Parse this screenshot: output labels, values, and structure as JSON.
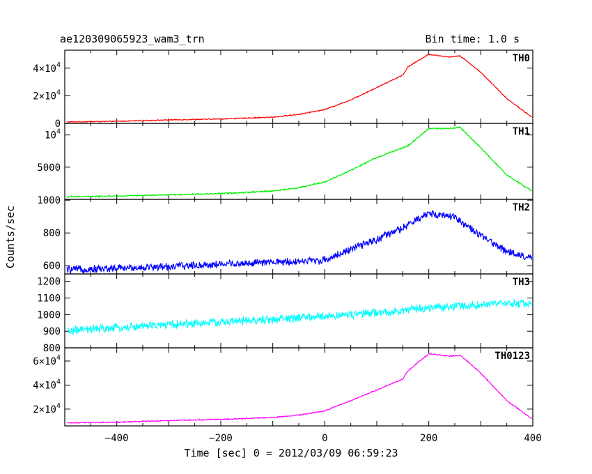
{
  "chart_data": {
    "type": "line",
    "title": "ae120309065923_wam3_trn",
    "subtitle": "Bin time: 1.0 s",
    "xlabel": "Time [sec] 0 = 2012/03/09 06:59:23",
    "ylabel": "Counts/sec",
    "xlim": [
      -500,
      400
    ],
    "x_ticks": [
      "−400",
      "−200",
      "0",
      "200",
      "400"
    ],
    "grid": false,
    "panels": [
      {
        "name": "TH0",
        "color": "#ff0000",
        "ylim": [
          0,
          53000
        ],
        "tick_values": [
          0,
          20000,
          40000
        ],
        "tick_labels": [
          {
            "mantissa": "0",
            "exp": ""
          },
          {
            "mantissa": "2×10",
            "exp": "4"
          },
          {
            "mantissa": "4×10",
            "exp": "4"
          }
        ],
        "x": [
          -500,
          -400,
          -300,
          -200,
          -100,
          -50,
          0,
          50,
          100,
          150,
          160,
          200,
          240,
          260,
          300,
          350,
          400
        ],
        "values": [
          1000,
          1500,
          2500,
          3200,
          4500,
          6500,
          10000,
          17000,
          26000,
          35000,
          41000,
          50000,
          48000,
          49000,
          37000,
          18000,
          4000
        ],
        "noise": 0.006
      },
      {
        "name": "TH1",
        "color": "#00ee00",
        "ylim": [
          0,
          11800
        ],
        "tick_values": [
          5000,
          10000
        ],
        "tick_labels": [
          {
            "mantissa": "5000",
            "exp": ""
          },
          {
            "mantissa": "10",
            "exp": "4"
          }
        ],
        "x": [
          -500,
          -400,
          -300,
          -200,
          -100,
          -50,
          0,
          50,
          100,
          150,
          160,
          200,
          240,
          260,
          300,
          350,
          400
        ],
        "values": [
          400,
          500,
          700,
          900,
          1300,
          1800,
          2700,
          4500,
          6500,
          8000,
          8300,
          11000,
          11000,
          11200,
          8000,
          3800,
          1200
        ],
        "noise": 0.008
      },
      {
        "name": "TH2",
        "color": "#0000ff",
        "ylim": [
          550,
          1005
        ],
        "tick_values": [
          600,
          800,
          1000
        ],
        "tick_labels": [
          {
            "mantissa": "600",
            "exp": ""
          },
          {
            "mantissa": "800",
            "exp": ""
          },
          {
            "mantissa": "1000",
            "exp": ""
          }
        ],
        "x": [
          -500,
          -400,
          -300,
          -200,
          -100,
          0,
          50,
          100,
          150,
          200,
          250,
          300,
          350,
          400
        ],
        "values": [
          575,
          585,
          595,
          610,
          620,
          635,
          700,
          760,
          830,
          920,
          900,
          780,
          690,
          640
        ],
        "noise": 0.045
      },
      {
        "name": "TH3",
        "color": "#00ffff",
        "ylim": [
          800,
          1245
        ],
        "tick_values": [
          800,
          900,
          1000,
          1100,
          1200
        ],
        "tick_labels": [
          {
            "mantissa": "800",
            "exp": ""
          },
          {
            "mantissa": "900",
            "exp": ""
          },
          {
            "mantissa": "1000",
            "exp": ""
          },
          {
            "mantissa": "1100",
            "exp": ""
          },
          {
            "mantissa": "1200",
            "exp": ""
          }
        ],
        "x": [
          -500,
          -400,
          -300,
          -200,
          -100,
          0,
          100,
          200,
          300,
          400
        ],
        "values": [
          900,
          920,
          940,
          955,
          970,
          990,
          1010,
          1040,
          1060,
          1070
        ],
        "noise": 0.05
      },
      {
        "name": "TH0123",
        "color": "#ff00ff",
        "ylim": [
          6000,
          71000
        ],
        "tick_values": [
          20000,
          40000,
          60000
        ],
        "tick_labels": [
          {
            "mantissa": "2×10",
            "exp": "4"
          },
          {
            "mantissa": "4×10",
            "exp": "4"
          },
          {
            "mantissa": "6×10",
            "exp": "4"
          }
        ],
        "x": [
          -500,
          -400,
          -300,
          -200,
          -100,
          -50,
          0,
          50,
          100,
          150,
          160,
          200,
          240,
          260,
          300,
          350,
          400
        ],
        "values": [
          8500,
          9000,
          10500,
          11500,
          13000,
          15000,
          18500,
          27000,
          36000,
          45000,
          52000,
          66000,
          64000,
          65000,
          50000,
          27000,
          11500
        ],
        "noise": 0.006
      }
    ]
  }
}
